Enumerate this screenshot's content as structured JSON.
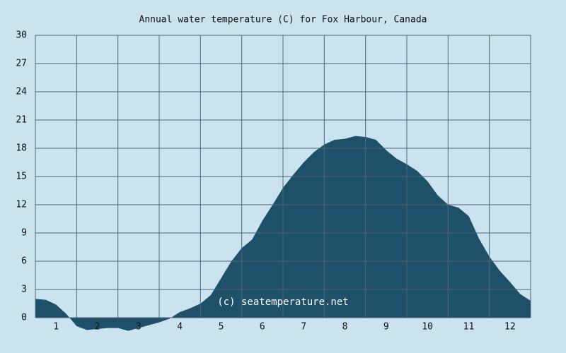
{
  "chart_data": {
    "type": "area",
    "title": "Annual water temperature (C) for Fox Harbour, Canada",
    "annotation": "(c) seatemperature.net",
    "color": "#1e5069",
    "grid": true,
    "xlim": [
      0,
      12
    ],
    "xticks": [
      {
        "value": 0.5,
        "label": "1"
      },
      {
        "value": 1.5,
        "label": "2"
      },
      {
        "value": 2.5,
        "label": "3"
      },
      {
        "value": 3.5,
        "label": "4"
      },
      {
        "value": 4.5,
        "label": "5"
      },
      {
        "value": 5.5,
        "label": "6"
      },
      {
        "value": 6.5,
        "label": "7"
      },
      {
        "value": 7.5,
        "label": "8"
      },
      {
        "value": 8.5,
        "label": "9"
      },
      {
        "value": 9.5,
        "label": "10"
      },
      {
        "value": 10.5,
        "label": "11"
      },
      {
        "value": 11.5,
        "label": "12"
      }
    ],
    "ylim": [
      0,
      30
    ],
    "yticks": [
      0,
      3,
      6,
      9,
      12,
      15,
      18,
      21,
      24,
      27,
      30
    ],
    "x": [
      0,
      0.25,
      0.5,
      0.75,
      1,
      1.25,
      1.5,
      1.75,
      2,
      2.25,
      2.5,
      2.75,
      3,
      3.25,
      3.5,
      3.75,
      4,
      4.25,
      4.5,
      4.75,
      5,
      5.25,
      5.5,
      5.75,
      6,
      6.25,
      6.5,
      6.75,
      7,
      7.25,
      7.5,
      7.75,
      8,
      8.25,
      8.5,
      8.75,
      9,
      9.25,
      9.5,
      9.75,
      10,
      10.25,
      10.5,
      10.75,
      11,
      11.25,
      11.5,
      11.75,
      12
    ],
    "values": [
      2.0,
      1.9,
      1.4,
      0.4,
      -0.9,
      -1.3,
      -1.2,
      -1.1,
      -1.1,
      -1.4,
      -1.1,
      -0.8,
      -0.5,
      -0.1,
      0.6,
      1.0,
      1.5,
      2.4,
      4.2,
      6.0,
      7.4,
      8.3,
      10.3,
      12.0,
      13.8,
      15.2,
      16.5,
      17.6,
      18.4,
      18.9,
      19.0,
      19.3,
      19.2,
      18.9,
      17.8,
      16.9,
      16.3,
      15.6,
      14.5,
      13.0,
      12.0,
      11.7,
      10.8,
      8.4,
      6.5,
      5.0,
      3.8,
      2.5,
      1.8
    ]
  }
}
